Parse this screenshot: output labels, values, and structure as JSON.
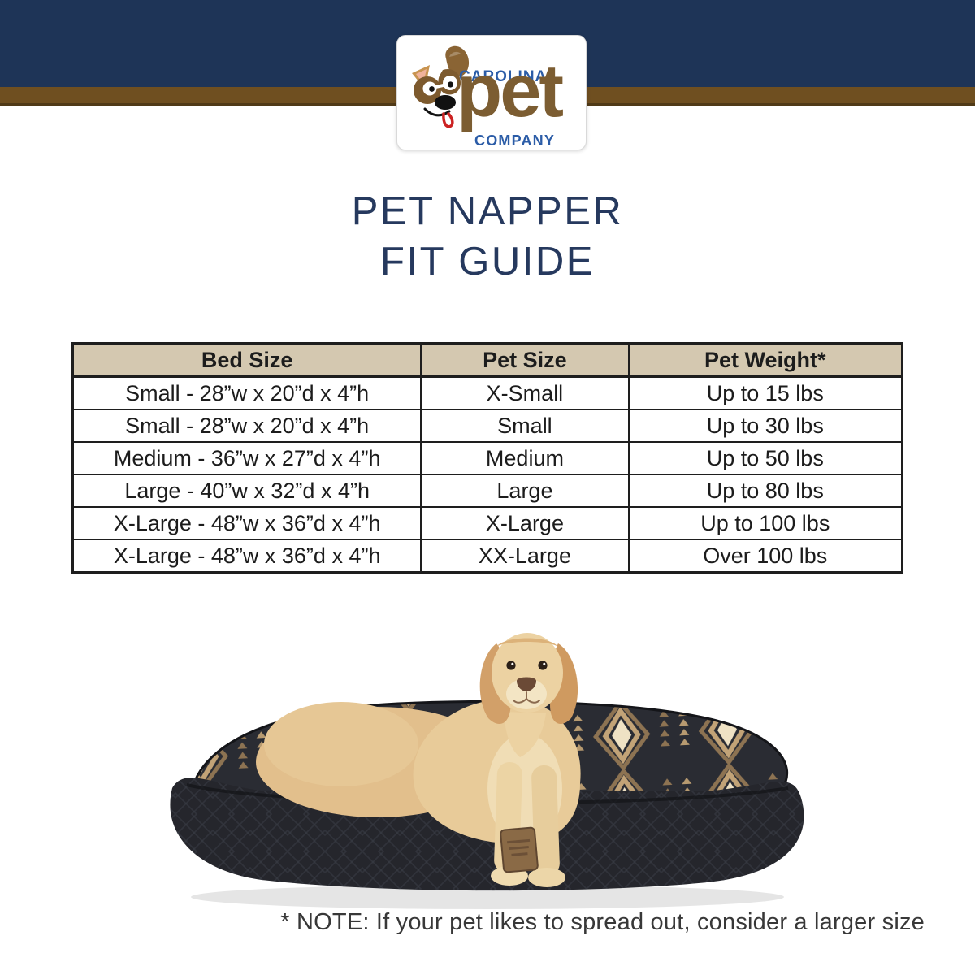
{
  "logo": {
    "carolina": "CAROLINA",
    "pet": "pet",
    "company": "COMPANY",
    "dog_icon": "dog-face-logo",
    "colors": {
      "blue": "#2b5ca7",
      "brown": "#7c5d32"
    }
  },
  "header": {
    "navy_band_color": "#1e3457",
    "brown_band_color": "#6f4f20"
  },
  "title": {
    "line1": "PET NAPPER",
    "line2": "FIT GUIDE",
    "color": "#26395e"
  },
  "table": {
    "columns": [
      "Bed Size",
      "Pet Size",
      "Pet Weight*"
    ],
    "rows": [
      [
        "Small - 28”w x 20”d x 4”h",
        "X-Small",
        "Up to 15 lbs"
      ],
      [
        "Small - 28”w x 20”d x 4”h",
        "Small",
        "Up to 30 lbs"
      ],
      [
        "Medium - 36”w x 27”d x 4”h",
        "Medium",
        "Up to 50 lbs"
      ],
      [
        "Large - 40”w x 32”d x 4”h",
        "Large",
        "Up to 80 lbs"
      ],
      [
        "X-Large - 48”w x 36”d x 4”h",
        "X-Large",
        "Up to 100 lbs"
      ],
      [
        "X-Large - 48”w x 36”d x 4”h",
        "XX-Large",
        "Over 100 lbs"
      ]
    ],
    "header_bg": "#d4c8b0",
    "border_color": "#1e1e1e"
  },
  "photo": {
    "description": "Yellow Labrador retriever lying on a dark quilted pet napper bed with southwestern pattern"
  },
  "note": {
    "text": "* NOTE: If your pet likes to spread out, consider a larger size"
  }
}
